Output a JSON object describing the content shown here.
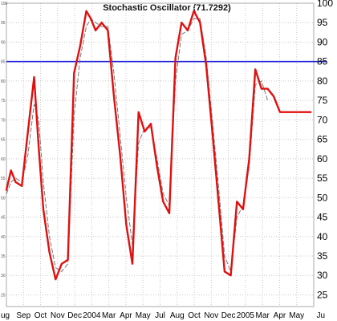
{
  "chart_data": {
    "type": "line",
    "title": "Stochastic Oscillator (71.7292)",
    "ylim": [
      22,
      100
    ],
    "y_ticks": [
      25,
      30,
      35,
      40,
      45,
      50,
      55,
      60,
      65,
      70,
      75,
      80,
      85,
      90,
      95,
      100
    ],
    "x_tick_labels": [
      "ug",
      "Sep",
      "Oct",
      "Nov",
      "Dec",
      "2004",
      "Mar",
      "Apr",
      "May",
      "Jul",
      "Aug",
      "Oct",
      "Nov",
      "Dec",
      "2005",
      "Mar",
      "Apr",
      "May",
      "Ju"
    ],
    "reference_line": {
      "value": 85,
      "color": "#1a1adc"
    },
    "colors": {
      "main": "#e01010",
      "signal": "#777777",
      "grid": "#c8c8c8"
    },
    "grid": true,
    "legend": "none",
    "x_index_range": [
      0,
      100
    ],
    "series": [
      {
        "style": "solid",
        "x": [
          0,
          1.5,
          3,
          5,
          7,
          9,
          10.5,
          12,
          14,
          16,
          18,
          20,
          22,
          24,
          26,
          27.5,
          29,
          31,
          33,
          35,
          37,
          39,
          41,
          43,
          45,
          47,
          49,
          51,
          53,
          55,
          57,
          59,
          61,
          63,
          65,
          67,
          69,
          71,
          73,
          75,
          77,
          79,
          81,
          83,
          85,
          87,
          89,
          91,
          93,
          95,
          97,
          98,
          99
        ],
        "values": [
          52,
          57,
          54,
          53,
          67,
          81,
          63,
          47,
          36,
          29,
          33,
          34,
          82,
          89,
          98,
          96,
          93,
          95,
          93,
          76,
          61,
          43,
          33,
          72,
          67,
          69,
          58,
          49,
          46,
          86,
          95,
          93,
          98,
          95,
          84,
          67,
          49,
          31,
          30,
          49,
          47,
          60,
          83,
          78,
          78,
          76,
          72,
          72,
          72,
          72,
          72,
          72,
          72
        ]
      },
      {
        "style": "dashed",
        "x": [
          0,
          1.5,
          3,
          5,
          7,
          9,
          10.5,
          12,
          14,
          16,
          18,
          20,
          22,
          24,
          26,
          27.5,
          29,
          31,
          33,
          35,
          37,
          39,
          41,
          43,
          45,
          47,
          49,
          51,
          53,
          55,
          57,
          59,
          61,
          63,
          65,
          67,
          69,
          71,
          73,
          75,
          77,
          79,
          81,
          83,
          85
        ],
        "values": [
          51,
          54,
          55,
          54,
          61,
          74,
          70,
          54,
          40,
          32,
          31,
          33,
          71,
          86,
          94,
          96,
          95,
          94,
          94,
          82,
          66,
          50,
          38,
          64,
          68,
          68,
          60,
          51,
          48,
          80,
          92,
          93,
          96,
          96,
          86,
          70,
          53,
          35,
          31,
          45,
          48,
          58,
          79,
          80,
          75
        ]
      }
    ]
  }
}
